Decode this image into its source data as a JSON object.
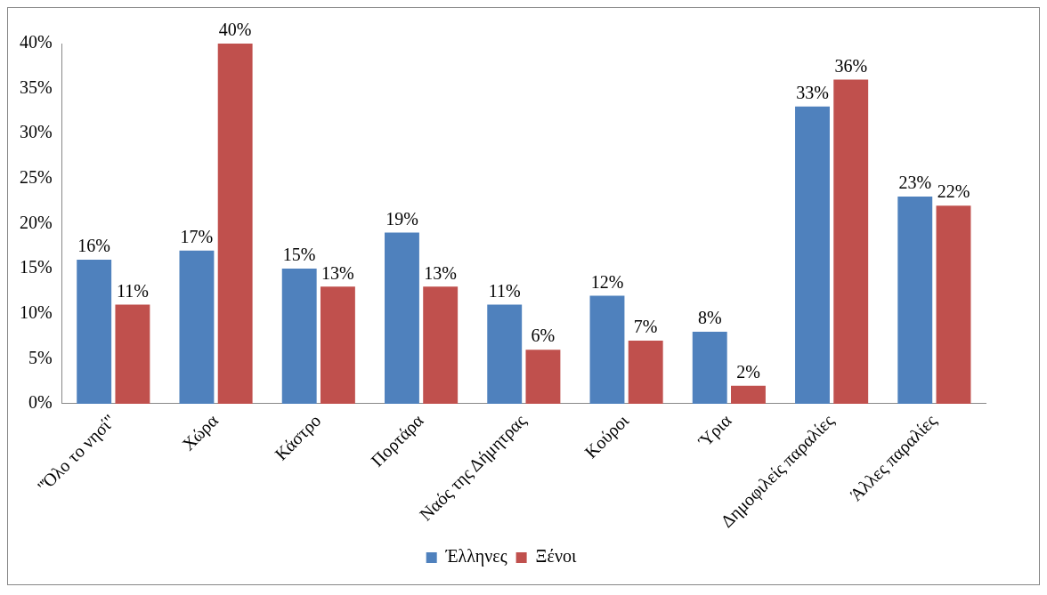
{
  "chart_data": {
    "type": "bar",
    "categories": [
      "\"Όλο το νησί\"",
      "Χώρα",
      "Κάστρο",
      "Πορτάρα",
      "Ναός της Δήμητρας",
      "Κούροι",
      "Ύρια",
      "Δημοφιλείς παραλίες",
      "Άλλες παραλίες"
    ],
    "series": [
      {
        "name": "Έλληνες",
        "color": "#4f81bd",
        "values": [
          16,
          17,
          15,
          19,
          11,
          12,
          8,
          33,
          23
        ],
        "value_labels": [
          "16%",
          "17%",
          "15%",
          "19%",
          "11%",
          "12%",
          "8%",
          "33%",
          "23%"
        ]
      },
      {
        "name": "Ξένοι",
        "color": "#c0504d",
        "values": [
          11,
          40,
          13,
          13,
          6,
          7,
          2,
          36,
          22
        ],
        "value_labels": [
          "11%",
          "40%",
          "13%",
          "13%",
          "6%",
          "7%",
          "2%",
          "36%",
          "22%"
        ]
      }
    ],
    "ylim": [
      0,
      40
    ],
    "yticks": [
      {
        "value": 0,
        "label": "0%"
      },
      {
        "value": 5,
        "label": "5%"
      },
      {
        "value": 10,
        "label": "10%"
      },
      {
        "value": 15,
        "label": "15%"
      },
      {
        "value": 20,
        "label": "20%"
      },
      {
        "value": 25,
        "label": "25%"
      },
      {
        "value": 30,
        "label": "30%"
      },
      {
        "value": 35,
        "label": "35%"
      },
      {
        "value": 40,
        "label": "40%"
      }
    ],
    "grid": false,
    "legend": "bottom"
  }
}
